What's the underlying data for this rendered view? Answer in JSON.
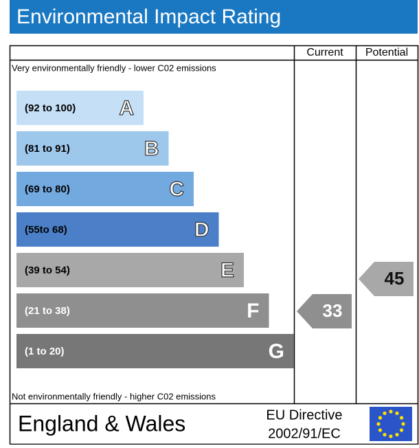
{
  "header": {
    "title": "Environmental Impact Rating"
  },
  "columns": {
    "current": "Current",
    "potential": "Potential"
  },
  "top_note": "Very environmentally friendly - lower C02 emissions",
  "bottom_note": "Not environmentally friendly - higher C02 emissions",
  "bands": [
    {
      "range": "(92 to 100)",
      "letter": "A",
      "color": "#c5e0f6"
    },
    {
      "range": "(81 to 91)",
      "letter": "B",
      "color": "#9ec7ec"
    },
    {
      "range": "(69 to 80)",
      "letter": "C",
      "color": "#72a9df"
    },
    {
      "range": "(55to 68)",
      "letter": "D",
      "color": "#4b80c8"
    },
    {
      "range": "(39 to 54)",
      "letter": "E",
      "color": "#a8a8a8"
    },
    {
      "range": "(21 to 38)",
      "letter": "F",
      "color": "#8f8f8f"
    },
    {
      "range": "(1 to 20)",
      "letter": "G",
      "color": "#777777"
    }
  ],
  "current": {
    "value": "33",
    "color": "#8f8f8f"
  },
  "potential": {
    "value": "45",
    "color": "#a8a8a8"
  },
  "footer": {
    "region": "England & Wales",
    "directive_line1": "EU Directive",
    "directive_line2": "2002/91/EC"
  }
}
